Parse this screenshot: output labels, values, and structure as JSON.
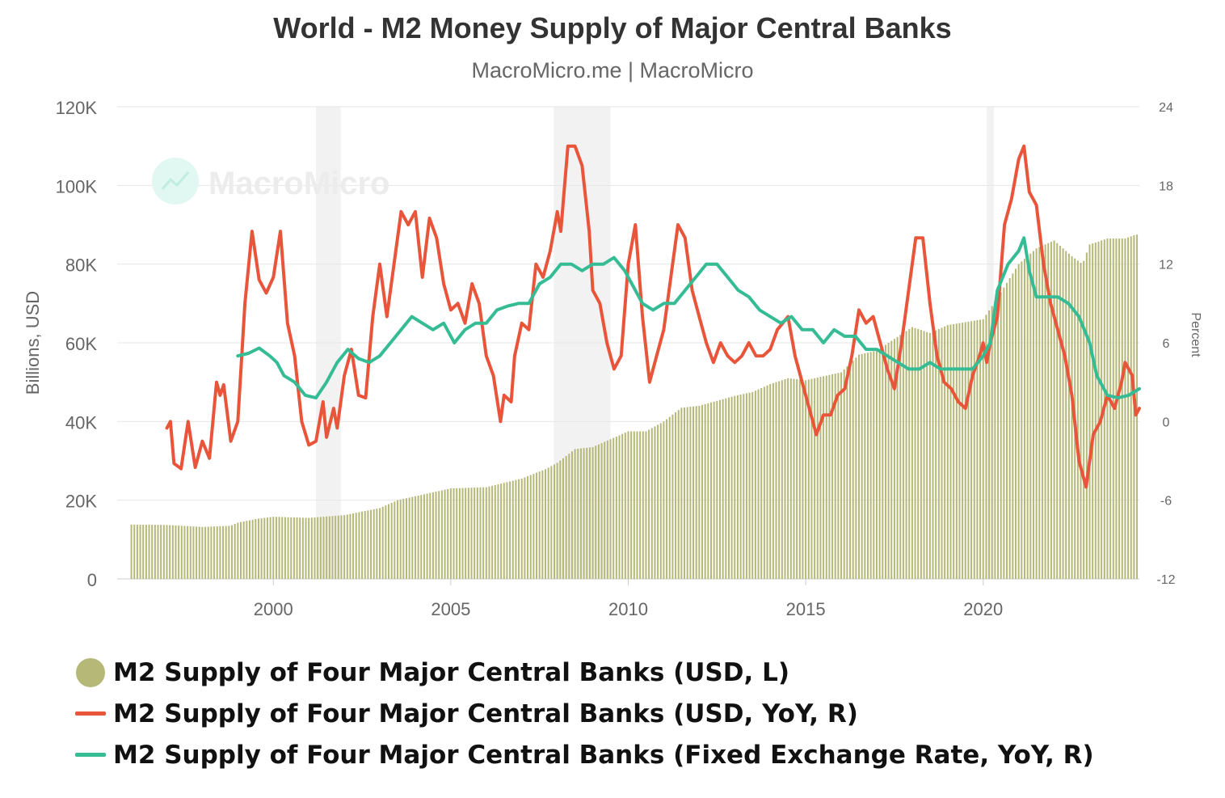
{
  "title": "World - M2 Money Supply of Major Central Banks",
  "subtitle": "MacroMicro.me | MacroMicro",
  "watermark": "MacroMicro",
  "colors": {
    "bars": "#b5b877",
    "usd_yoy": "#e8553a",
    "fixed_yoy": "#35bc94",
    "recession": "#f2f2f2",
    "grid": "#e6e6e6"
  },
  "chart_data": {
    "type": "bar+line",
    "x_range": [
      1995.6,
      2024.4
    ],
    "x_ticks": [
      "2000",
      "2005",
      "2010",
      "2015",
      "2020"
    ],
    "y_left": {
      "label": "Billions, USD",
      "range": [
        0,
        120000
      ],
      "ticks": [
        "0",
        "20K",
        "40K",
        "60K",
        "80K",
        "100K",
        "120K"
      ]
    },
    "y_right": {
      "label": "Percent",
      "range": [
        -12,
        24
      ],
      "ticks": [
        "-12",
        "-6",
        "0",
        "6",
        "12",
        "18",
        "24"
      ]
    },
    "recession_shading": [
      [
        2001.2,
        2001.9
      ],
      [
        2007.9,
        2009.5
      ],
      [
        2020.1,
        2020.3
      ]
    ],
    "series": [
      {
        "name": "M2 Supply of Four Major Central Banks (USD, L)",
        "type": "bar",
        "axis": "left",
        "points": [
          [
            1996.0,
            13800
          ],
          [
            1997.0,
            13700
          ],
          [
            1998.0,
            13200
          ],
          [
            1998.8,
            13500
          ],
          [
            1999.0,
            14300
          ],
          [
            1999.5,
            15200
          ],
          [
            2000.0,
            15800
          ],
          [
            2001.0,
            15500
          ],
          [
            2002.0,
            16200
          ],
          [
            2003.0,
            18000
          ],
          [
            2003.5,
            20000
          ],
          [
            2004.0,
            21000
          ],
          [
            2004.5,
            22000
          ],
          [
            2005.0,
            23000
          ],
          [
            2006.0,
            23300
          ],
          [
            2007.0,
            25500
          ],
          [
            2007.7,
            28000
          ],
          [
            2008.0,
            29500
          ],
          [
            2008.5,
            33000
          ],
          [
            2009.0,
            33500
          ],
          [
            2009.5,
            35500
          ],
          [
            2010.0,
            37500
          ],
          [
            2010.5,
            37500
          ],
          [
            2011.0,
            40000
          ],
          [
            2011.5,
            43500
          ],
          [
            2012.0,
            44000
          ],
          [
            2013.0,
            46500
          ],
          [
            2013.5,
            47500
          ],
          [
            2014.0,
            49500
          ],
          [
            2014.5,
            51000
          ],
          [
            2015.0,
            50500
          ],
          [
            2016.0,
            52500
          ],
          [
            2016.5,
            57000
          ],
          [
            2017.0,
            58000
          ],
          [
            2017.5,
            61000
          ],
          [
            2018.0,
            64000
          ],
          [
            2018.5,
            62500
          ],
          [
            2019.0,
            64500
          ],
          [
            2020.0,
            66000
          ],
          [
            2020.3,
            70000
          ],
          [
            2021.0,
            80000
          ],
          [
            2021.5,
            84000
          ],
          [
            2022.0,
            86000
          ],
          [
            2022.5,
            82000
          ],
          [
            2022.8,
            80000
          ],
          [
            2023.0,
            85000
          ],
          [
            2023.5,
            86500
          ],
          [
            2024.0,
            86500
          ],
          [
            2024.3,
            87500
          ]
        ]
      },
      {
        "name": "M2 Supply of Four Major Central Banks (USD, YoY, R)",
        "type": "line",
        "axis": "right",
        "points": [
          [
            1997.0,
            -0.5
          ],
          [
            1997.1,
            0
          ],
          [
            1997.2,
            -3.2
          ],
          [
            1997.4,
            -3.6
          ],
          [
            1997.6,
            0
          ],
          [
            1997.8,
            -3.5
          ],
          [
            1998.0,
            -1.5
          ],
          [
            1998.2,
            -2.8
          ],
          [
            1998.4,
            3.0
          ],
          [
            1998.5,
            2.0
          ],
          [
            1998.6,
            2.8
          ],
          [
            1998.8,
            -1.5
          ],
          [
            1999.0,
            0
          ],
          [
            1999.2,
            9.0
          ],
          [
            1999.4,
            14.5
          ],
          [
            1999.6,
            10.8
          ],
          [
            1999.8,
            9.8
          ],
          [
            2000.0,
            11.0
          ],
          [
            2000.2,
            14.5
          ],
          [
            2000.4,
            7.5
          ],
          [
            2000.6,
            5.0
          ],
          [
            2000.8,
            0
          ],
          [
            2001.0,
            -1.8
          ],
          [
            2001.2,
            -1.5
          ],
          [
            2001.4,
            1.5
          ],
          [
            2001.5,
            -1.2
          ],
          [
            2001.7,
            1.0
          ],
          [
            2001.8,
            -0.5
          ],
          [
            2002.0,
            3.5
          ],
          [
            2002.2,
            5.5
          ],
          [
            2002.4,
            2.0
          ],
          [
            2002.6,
            1.8
          ],
          [
            2002.8,
            8.0
          ],
          [
            2003.0,
            12.0
          ],
          [
            2003.2,
            8.0
          ],
          [
            2003.4,
            12.0
          ],
          [
            2003.6,
            16.0
          ],
          [
            2003.8,
            15.0
          ],
          [
            2004.0,
            16.0
          ],
          [
            2004.2,
            11.0
          ],
          [
            2004.4,
            15.5
          ],
          [
            2004.6,
            14.0
          ],
          [
            2004.8,
            10.5
          ],
          [
            2005.0,
            8.5
          ],
          [
            2005.2,
            9.0
          ],
          [
            2005.4,
            7.5
          ],
          [
            2005.6,
            10.5
          ],
          [
            2005.8,
            9.0
          ],
          [
            2006.0,
            5.0
          ],
          [
            2006.2,
            3.5
          ],
          [
            2006.4,
            0
          ],
          [
            2006.5,
            2.0
          ],
          [
            2006.7,
            1.5
          ],
          [
            2006.8,
            5.0
          ],
          [
            2007.0,
            7.5
          ],
          [
            2007.2,
            7.0
          ],
          [
            2007.4,
            12.0
          ],
          [
            2007.6,
            11.0
          ],
          [
            2007.8,
            13.0
          ],
          [
            2008.0,
            16.0
          ],
          [
            2008.1,
            14.5
          ],
          [
            2008.3,
            21.0
          ],
          [
            2008.5,
            21.0
          ],
          [
            2008.7,
            19.5
          ],
          [
            2008.9,
            14.5
          ],
          [
            2009.0,
            10.0
          ],
          [
            2009.2,
            9.0
          ],
          [
            2009.4,
            6.0
          ],
          [
            2009.6,
            4.0
          ],
          [
            2009.8,
            5.0
          ],
          [
            2010.0,
            12.0
          ],
          [
            2010.2,
            15.0
          ],
          [
            2010.4,
            8.0
          ],
          [
            2010.6,
            3.0
          ],
          [
            2010.8,
            5.0
          ],
          [
            2011.0,
            7.0
          ],
          [
            2011.2,
            11.0
          ],
          [
            2011.4,
            15.0
          ],
          [
            2011.6,
            14.0
          ],
          [
            2011.8,
            10.0
          ],
          [
            2012.0,
            8.0
          ],
          [
            2012.2,
            6.0
          ],
          [
            2012.4,
            4.5
          ],
          [
            2012.6,
            6.0
          ],
          [
            2012.8,
            5.0
          ],
          [
            2013.0,
            4.5
          ],
          [
            2013.2,
            5.0
          ],
          [
            2013.4,
            6.0
          ],
          [
            2013.6,
            5.0
          ],
          [
            2013.8,
            5.0
          ],
          [
            2014.0,
            5.5
          ],
          [
            2014.2,
            7.0
          ],
          [
            2014.5,
            8.0
          ],
          [
            2014.7,
            5.0
          ],
          [
            2014.9,
            3.0
          ],
          [
            2015.1,
            1.0
          ],
          [
            2015.3,
            -1.0
          ],
          [
            2015.5,
            0.5
          ],
          [
            2015.7,
            0.5
          ],
          [
            2015.9,
            2.0
          ],
          [
            2016.1,
            2.5
          ],
          [
            2016.3,
            5.0
          ],
          [
            2016.5,
            8.5
          ],
          [
            2016.7,
            7.5
          ],
          [
            2016.9,
            8.0
          ],
          [
            2017.1,
            6.0
          ],
          [
            2017.3,
            4.0
          ],
          [
            2017.5,
            2.5
          ],
          [
            2017.7,
            6.0
          ],
          [
            2017.9,
            10.0
          ],
          [
            2018.1,
            14.0
          ],
          [
            2018.3,
            14.0
          ],
          [
            2018.5,
            9.0
          ],
          [
            2018.7,
            5.0
          ],
          [
            2018.9,
            3.0
          ],
          [
            2019.1,
            2.5
          ],
          [
            2019.3,
            1.5
          ],
          [
            2019.5,
            1.0
          ],
          [
            2019.7,
            3.5
          ],
          [
            2019.9,
            5.0
          ],
          [
            2020.0,
            6.0
          ],
          [
            2020.1,
            4.5
          ],
          [
            2020.2,
            6.0
          ],
          [
            2020.4,
            8.0
          ],
          [
            2020.6,
            15.0
          ],
          [
            2020.8,
            17.0
          ],
          [
            2021.0,
            20.0
          ],
          [
            2021.15,
            21.0
          ],
          [
            2021.3,
            17.5
          ],
          [
            2021.5,
            16.5
          ],
          [
            2021.7,
            12.0
          ],
          [
            2021.9,
            9.0
          ],
          [
            2022.1,
            7.0
          ],
          [
            2022.3,
            5.0
          ],
          [
            2022.5,
            2.0
          ],
          [
            2022.7,
            -3.0
          ],
          [
            2022.9,
            -5.0
          ],
          [
            2023.1,
            -1.0
          ],
          [
            2023.3,
            0
          ],
          [
            2023.5,
            2.0
          ],
          [
            2023.7,
            1.0
          ],
          [
            2023.9,
            3.0
          ],
          [
            2024.0,
            4.5
          ],
          [
            2024.2,
            3.5
          ],
          [
            2024.3,
            0.5
          ],
          [
            2024.4,
            1.0
          ]
        ]
      },
      {
        "name": "M2 Supply of Four Major Central Banks (Fixed Exchange Rate, YoY, R)",
        "type": "line",
        "axis": "right",
        "points": [
          [
            1999.0,
            5.0
          ],
          [
            1999.3,
            5.2
          ],
          [
            1999.6,
            5.6
          ],
          [
            1999.9,
            5.0
          ],
          [
            2000.1,
            4.5
          ],
          [
            2000.3,
            3.5
          ],
          [
            2000.6,
            3.0
          ],
          [
            2000.9,
            2.0
          ],
          [
            2001.2,
            1.8
          ],
          [
            2001.5,
            3.0
          ],
          [
            2001.8,
            4.5
          ],
          [
            2002.1,
            5.5
          ],
          [
            2002.4,
            4.8
          ],
          [
            2002.7,
            4.5
          ],
          [
            2003.0,
            5.0
          ],
          [
            2003.3,
            6.0
          ],
          [
            2003.6,
            7.0
          ],
          [
            2003.9,
            8.0
          ],
          [
            2004.2,
            7.5
          ],
          [
            2004.5,
            7.0
          ],
          [
            2004.8,
            7.5
          ],
          [
            2005.1,
            6.0
          ],
          [
            2005.4,
            7.0
          ],
          [
            2005.7,
            7.5
          ],
          [
            2006.0,
            7.5
          ],
          [
            2006.3,
            8.5
          ],
          [
            2006.6,
            8.8
          ],
          [
            2006.9,
            9.0
          ],
          [
            2007.2,
            9.0
          ],
          [
            2007.5,
            10.5
          ],
          [
            2007.8,
            11.0
          ],
          [
            2008.1,
            12.0
          ],
          [
            2008.4,
            12.0
          ],
          [
            2008.7,
            11.5
          ],
          [
            2009.0,
            12.0
          ],
          [
            2009.3,
            12.0
          ],
          [
            2009.6,
            12.5
          ],
          [
            2009.9,
            11.5
          ],
          [
            2010.1,
            10.5
          ],
          [
            2010.4,
            9.0
          ],
          [
            2010.7,
            8.5
          ],
          [
            2011.0,
            9.0
          ],
          [
            2011.3,
            9.0
          ],
          [
            2011.6,
            10.0
          ],
          [
            2011.9,
            11.0
          ],
          [
            2012.2,
            12.0
          ],
          [
            2012.5,
            12.0
          ],
          [
            2012.8,
            11.0
          ],
          [
            2013.1,
            10.0
          ],
          [
            2013.4,
            9.5
          ],
          [
            2013.7,
            8.5
          ],
          [
            2014.0,
            8.0
          ],
          [
            2014.3,
            7.5
          ],
          [
            2014.6,
            8.0
          ],
          [
            2014.9,
            7.0
          ],
          [
            2015.2,
            7.0
          ],
          [
            2015.5,
            6.0
          ],
          [
            2015.8,
            7.0
          ],
          [
            2016.1,
            6.5
          ],
          [
            2016.4,
            6.5
          ],
          [
            2016.7,
            5.5
          ],
          [
            2017.0,
            5.5
          ],
          [
            2017.3,
            5.0
          ],
          [
            2017.6,
            4.5
          ],
          [
            2017.9,
            4.0
          ],
          [
            2018.2,
            4.0
          ],
          [
            2018.5,
            4.5
          ],
          [
            2018.8,
            4.0
          ],
          [
            2019.1,
            4.0
          ],
          [
            2019.4,
            4.0
          ],
          [
            2019.7,
            4.0
          ],
          [
            2020.0,
            5.0
          ],
          [
            2020.2,
            6.0
          ],
          [
            2020.4,
            10.0
          ],
          [
            2020.7,
            12.0
          ],
          [
            2021.0,
            13.0
          ],
          [
            2021.15,
            14.0
          ],
          [
            2021.3,
            11.5
          ],
          [
            2021.5,
            9.5
          ],
          [
            2021.8,
            9.5
          ],
          [
            2022.1,
            9.5
          ],
          [
            2022.4,
            9.0
          ],
          [
            2022.7,
            8.0
          ],
          [
            2023.0,
            6.0
          ],
          [
            2023.2,
            3.5
          ],
          [
            2023.5,
            2.0
          ],
          [
            2023.8,
            1.8
          ],
          [
            2024.1,
            2.0
          ],
          [
            2024.4,
            2.5
          ]
        ]
      }
    ]
  }
}
